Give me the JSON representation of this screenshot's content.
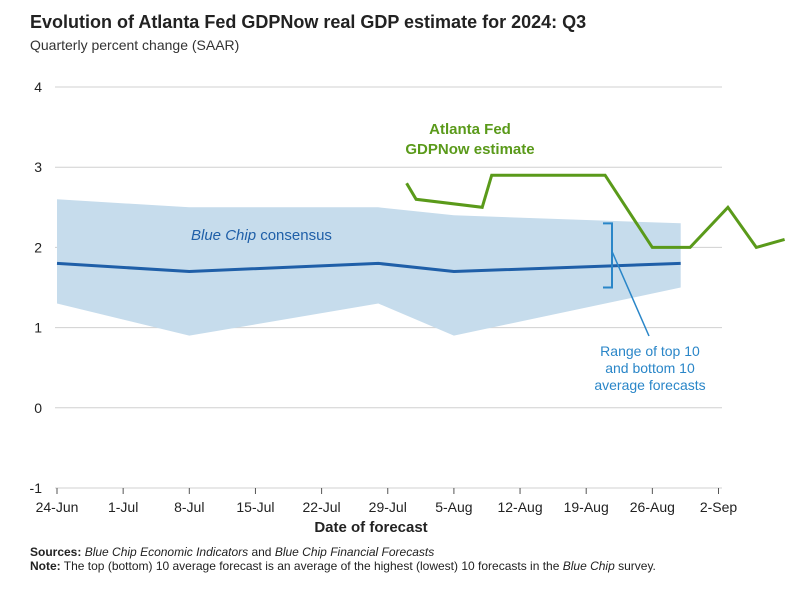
{
  "title": "Evolution of Atlanta Fed GDPNow real GDP estimate for 2024: Q3",
  "subtitle": "Quarterly percent change (SAAR)",
  "chart_data": {
    "type": "line",
    "xlabel": "Date of forecast",
    "ylabel": "",
    "ylim": [
      -1,
      4
    ],
    "yticks": [
      "4",
      "3",
      "2",
      "1",
      "0",
      "-1"
    ],
    "xticks": [
      "24-Jun",
      "1-Jul",
      "8-Jul",
      "15-Jul",
      "22-Jul",
      "29-Jul",
      "5-Aug",
      "12-Aug",
      "19-Aug",
      "26-Aug",
      "2-Sep"
    ],
    "grid": true,
    "series": [
      {
        "name": "Atlanta Fed GDPNow estimate",
        "color": "#5a9a1a",
        "points": [
          {
            "date": "2024-07-31",
            "value": 2.8
          },
          {
            "date": "2024-08-01",
            "value": 2.6
          },
          {
            "date": "2024-08-08",
            "value": 2.5
          },
          {
            "date": "2024-08-09",
            "value": 2.9
          },
          {
            "date": "2024-08-15",
            "value": 2.9
          },
          {
            "date": "2024-08-16",
            "value": 2.9
          },
          {
            "date": "2024-08-21",
            "value": 2.9
          },
          {
            "date": "2024-08-26",
            "value": 2.0
          },
          {
            "date": "2024-08-30",
            "value": 2.0
          },
          {
            "date": "2024-09-03",
            "value": 2.5
          },
          {
            "date": "2024-09-06",
            "value": 2.0
          },
          {
            "date": "2024-09-09",
            "value": 2.1
          }
        ]
      },
      {
        "name": "Blue Chip consensus",
        "name_italic": "Blue Chip",
        "name_rest": " consensus",
        "color": "#1f5fa8",
        "points": [
          {
            "date": "2024-06-24",
            "value": 1.8
          },
          {
            "date": "2024-07-08",
            "value": 1.7
          },
          {
            "date": "2024-07-28",
            "value": 1.8
          },
          {
            "date": "2024-08-05",
            "value": 1.7
          },
          {
            "date": "2024-08-29",
            "value": 1.8
          }
        ]
      }
    ],
    "band": {
      "name": "Range of top 10 and bottom 10 average forecasts",
      "label_lines": [
        "Range of top 10",
        "and bottom 10",
        "average forecasts"
      ],
      "color": "#c6dcec",
      "upper": [
        {
          "date": "2024-06-24",
          "value": 2.6
        },
        {
          "date": "2024-07-08",
          "value": 2.5
        },
        {
          "date": "2024-07-28",
          "value": 2.5
        },
        {
          "date": "2024-08-05",
          "value": 2.4
        },
        {
          "date": "2024-08-29",
          "value": 2.3
        }
      ],
      "lower": [
        {
          "date": "2024-06-24",
          "value": 1.3
        },
        {
          "date": "2024-07-08",
          "value": 0.9
        },
        {
          "date": "2024-07-28",
          "value": 1.3
        },
        {
          "date": "2024-08-05",
          "value": 0.9
        },
        {
          "date": "2024-08-29",
          "value": 1.5
        }
      ]
    },
    "annotations": {
      "gdpnow_lines": [
        "Atlanta Fed",
        "GDPNow estimate"
      ]
    }
  },
  "notes": {
    "sources_label": "Sources:",
    "sources_italic_1": "Blue Chip Economic Indicators",
    "sources_mid": " and ",
    "sources_italic_2": "Blue Chip Financial Forecasts",
    "note_label": "Note:",
    "note_text_1": " The top (bottom) 10 average forecast is an average of the highest (lowest) 10 forecasts in the ",
    "note_italic": "Blue Chip",
    "note_text_2": " survey."
  },
  "colors": {
    "green": "#5a9a1a",
    "blue_line": "#1f5fa8",
    "band": "#c6dcec",
    "annotation_blue": "#2a86c8",
    "grid": "#d0d0d0"
  }
}
